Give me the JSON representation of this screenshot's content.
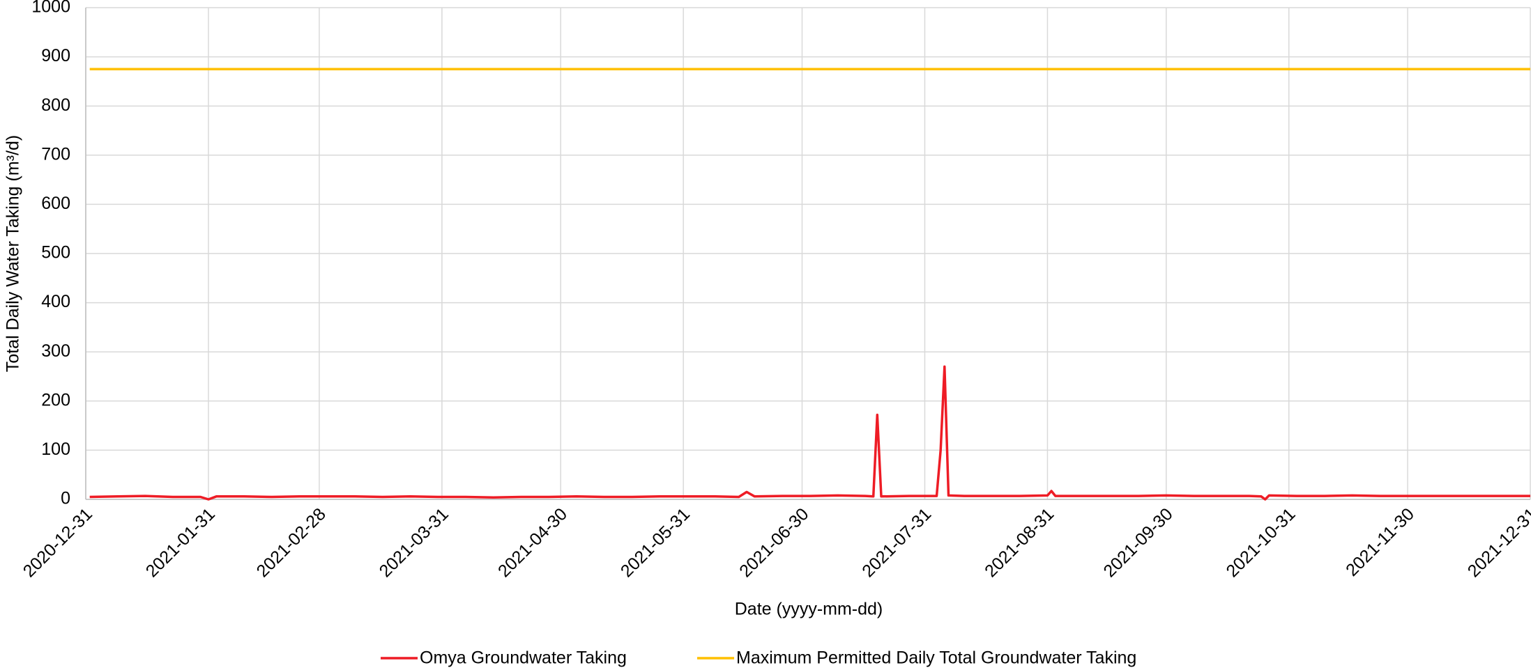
{
  "chart_data": {
    "type": "line",
    "xlabel": "Date (yyyy-mm-dd)",
    "ylabel": "Total Daily Water Taking (m³/d)",
    "xlim": [
      "2020-12-31",
      "2021-12-31"
    ],
    "xticks": [
      "2020-12-31",
      "2021-01-31",
      "2021-02-28",
      "2021-03-31",
      "2021-04-30",
      "2021-05-31",
      "2021-06-30",
      "2021-07-31",
      "2021-08-31",
      "2021-09-30",
      "2021-10-31",
      "2021-11-30",
      "2021-12-31"
    ],
    "ylim": [
      0,
      1000
    ],
    "yticks": [
      0,
      100,
      200,
      300,
      400,
      500,
      600,
      700,
      800,
      900,
      1000
    ],
    "grid": true,
    "legend": "bottom",
    "series": [
      {
        "name": "Omya Groundwater Taking",
        "color": "#ee1c25",
        "x": [
          "2021-01-01",
          "2021-01-08",
          "2021-01-15",
          "2021-01-22",
          "2021-01-29",
          "2021-01-31",
          "2021-02-02",
          "2021-02-09",
          "2021-02-16",
          "2021-02-23",
          "2021-03-02",
          "2021-03-09",
          "2021-03-16",
          "2021-03-23",
          "2021-03-30",
          "2021-04-06",
          "2021-04-13",
          "2021-04-20",
          "2021-04-27",
          "2021-05-04",
          "2021-05-11",
          "2021-05-18",
          "2021-05-25",
          "2021-06-01",
          "2021-06-08",
          "2021-06-14",
          "2021-06-16",
          "2021-06-18",
          "2021-06-25",
          "2021-07-02",
          "2021-07-09",
          "2021-07-16",
          "2021-07-18",
          "2021-07-19",
          "2021-07-20",
          "2021-07-27",
          "2021-08-03",
          "2021-08-04",
          "2021-08-05",
          "2021-08-06",
          "2021-08-10",
          "2021-08-17",
          "2021-08-24",
          "2021-08-31",
          "2021-09-01",
          "2021-09-02",
          "2021-09-09",
          "2021-09-16",
          "2021-09-23",
          "2021-09-30",
          "2021-10-07",
          "2021-10-14",
          "2021-10-21",
          "2021-10-24",
          "2021-10-25",
          "2021-10-26",
          "2021-11-02",
          "2021-11-09",
          "2021-11-16",
          "2021-11-23",
          "2021-11-30",
          "2021-12-07",
          "2021-12-14",
          "2021-12-21",
          "2021-12-28",
          "2021-12-31"
        ],
        "values": [
          5,
          6,
          7,
          5,
          5,
          0,
          6,
          6,
          5,
          6,
          6,
          6,
          5,
          6,
          5,
          5,
          4,
          5,
          5,
          6,
          5,
          5,
          6,
          6,
          6,
          5,
          15,
          6,
          7,
          7,
          8,
          7,
          6,
          172,
          6,
          7,
          7,
          100,
          270,
          8,
          7,
          7,
          7,
          8,
          17,
          7,
          7,
          7,
          7,
          8,
          7,
          7,
          7,
          6,
          0,
          8,
          7,
          7,
          8,
          7,
          7,
          7,
          7,
          7,
          7,
          7
        ]
      },
      {
        "name": "Maximum Permitted Daily Total Groundwater Taking",
        "color": "#ffc000",
        "x": [
          "2021-01-01",
          "2021-12-31"
        ],
        "values": [
          875,
          875
        ]
      }
    ]
  }
}
